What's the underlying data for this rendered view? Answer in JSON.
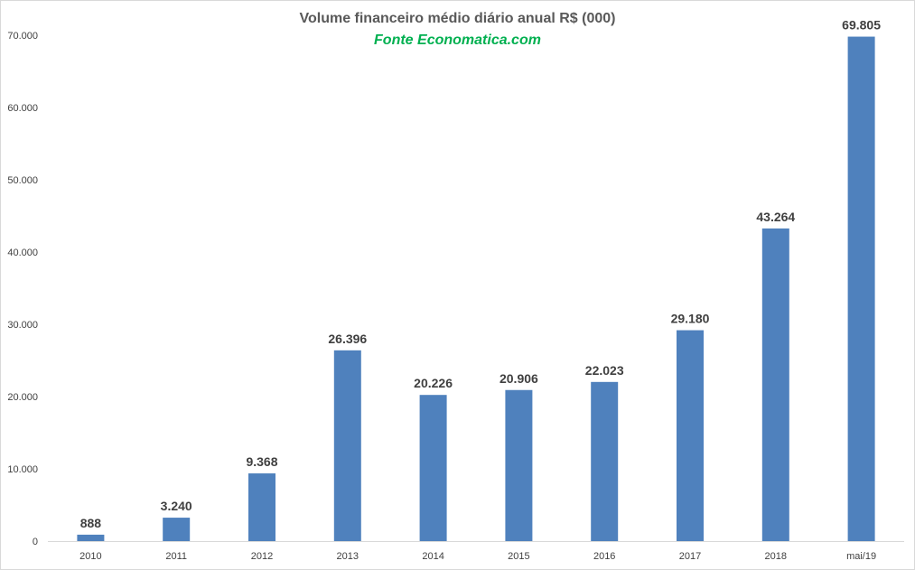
{
  "chart_data": {
    "type": "bar",
    "title": "Volume financeiro médio diário anual R$ (000)",
    "subtitle": "Fonte Economatica.com",
    "categories": [
      "2010",
      "2011",
      "2012",
      "2013",
      "2014",
      "2015",
      "2016",
      "2017",
      "2018",
      "mai/19"
    ],
    "values": [
      888,
      3240,
      9368,
      26396,
      20226,
      20906,
      22023,
      29180,
      43264,
      69805
    ],
    "data_labels": [
      "888",
      "3.240",
      "9.368",
      "26.396",
      "20.226",
      "20.906",
      "22.023",
      "29.180",
      "43.264",
      "69.805"
    ],
    "y_ticks": [
      0,
      10000,
      20000,
      30000,
      40000,
      50000,
      60000,
      70000
    ],
    "y_tick_labels": [
      "0",
      "10.000",
      "20.000",
      "30.000",
      "40.000",
      "50.000",
      "60.000",
      "70.000"
    ],
    "ylim": [
      0,
      70000
    ],
    "grid": false,
    "legend": "none",
    "colors": {
      "bar": "#4f81bd",
      "title": "#595959",
      "subtitle": "#00b050",
      "axis": "#d9d9d9",
      "text": "#404040"
    }
  }
}
